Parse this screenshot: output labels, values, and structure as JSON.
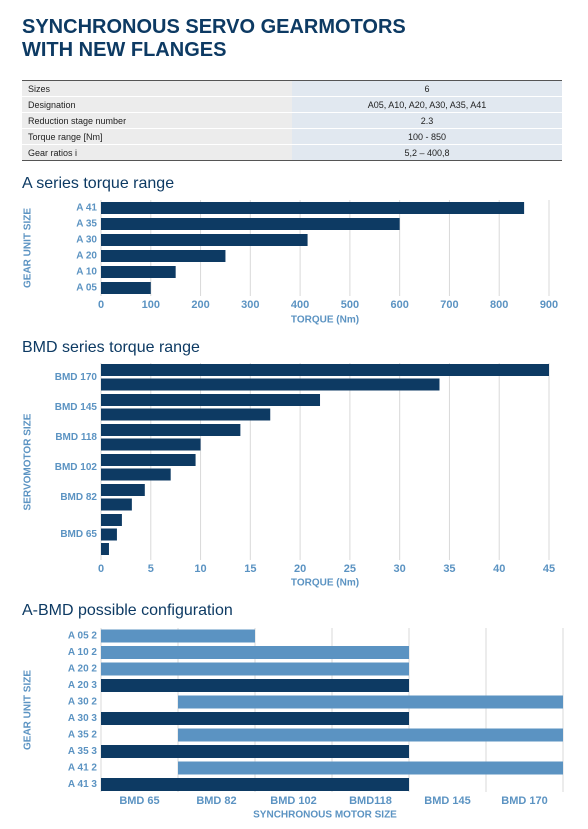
{
  "header": {
    "title_line1": "SYNCHRONOUS SERVO GEARMOTORS",
    "title_line2": "WITH NEW FLANGES"
  },
  "table": {
    "rows": [
      [
        "Sizes",
        "6"
      ],
      [
        "Designation",
        "A05, A10, A20, A30, A35, A41"
      ],
      [
        "Reduction stage number",
        "2.3"
      ],
      [
        "Torque range [Nm]",
        "100 - 850"
      ],
      [
        "Gear ratios i",
        "5,2 – 400,8"
      ]
    ]
  },
  "chart_data": [
    {
      "type": "bar",
      "title": "A series torque range",
      "categories": [
        "A 41",
        "A 35",
        "A 30",
        "A 20",
        "A 10",
        "A 05"
      ],
      "values": [
        850,
        600,
        415,
        250,
        150,
        100
      ],
      "color": "#0d3a63",
      "xlim": [
        0,
        900
      ],
      "xticks": [
        0,
        100,
        200,
        300,
        400,
        500,
        600,
        700,
        800,
        900
      ],
      "xlabel": "TORQUE (Nm)",
      "ylabel": "GEAR UNIT SIZE",
      "grid": true
    },
    {
      "type": "grouped_bar",
      "title": "BMD series torque range",
      "groups": [
        {
          "name": "BMD 170",
          "values": [
            45,
            34
          ]
        },
        {
          "name": "BMD 145",
          "values": [
            22,
            17
          ]
        },
        {
          "name": "BMD 118",
          "values": [
            14,
            10
          ]
        },
        {
          "name": "BMD 102",
          "values": [
            9.5,
            7
          ]
        },
        {
          "name": "BMD 82",
          "values": [
            4.4,
            3.1
          ]
        },
        {
          "name": "BMD 65",
          "values": [
            2.1,
            1.6,
            0.8
          ]
        }
      ],
      "color": "#0d3a63",
      "xlim": [
        0,
        45
      ],
      "xticks": [
        0,
        5,
        10,
        15,
        20,
        25,
        30,
        35,
        40,
        45
      ],
      "xlabel": "TORQUE (Nm)",
      "ylabel": "SERVOMOTOR SIZE",
      "grid": true
    },
    {
      "type": "range",
      "title": "A-BMD possible configuration",
      "columns": [
        "BMD 65",
        "BMD 82",
        "BMD 102",
        "BMD118",
        "BMD 145",
        "BMD 170"
      ],
      "rows": [
        {
          "name": "A 05 2",
          "start": 0,
          "end": 1,
          "color": "#5b93c2"
        },
        {
          "name": "A 10 2",
          "start": 0,
          "end": 3,
          "color": "#5b93c2"
        },
        {
          "name": "A 20 2",
          "start": 0,
          "end": 3,
          "color": "#5b93c2"
        },
        {
          "name": "A 20 3",
          "start": 0,
          "end": 3,
          "color": "#0d3a63"
        },
        {
          "name": "A 30 2",
          "start": 1,
          "end": 5,
          "color": "#5b93c2"
        },
        {
          "name": "A 30 3",
          "start": 0,
          "end": 3,
          "color": "#0d3a63"
        },
        {
          "name": "A 35 2",
          "start": 1,
          "end": 5,
          "color": "#5b93c2"
        },
        {
          "name": "A 35 3",
          "start": 0,
          "end": 3,
          "color": "#0d3a63"
        },
        {
          "name": "A 41 2",
          "start": 1,
          "end": 5,
          "color": "#5b93c2"
        },
        {
          "name": "A 41 3",
          "start": 0,
          "end": 3,
          "color": "#0d3a63"
        }
      ],
      "xlabel": "SYNCHRONOUS MOTOR SIZE",
      "ylabel": "GEAR UNIT SIZE",
      "grid": true
    }
  ]
}
